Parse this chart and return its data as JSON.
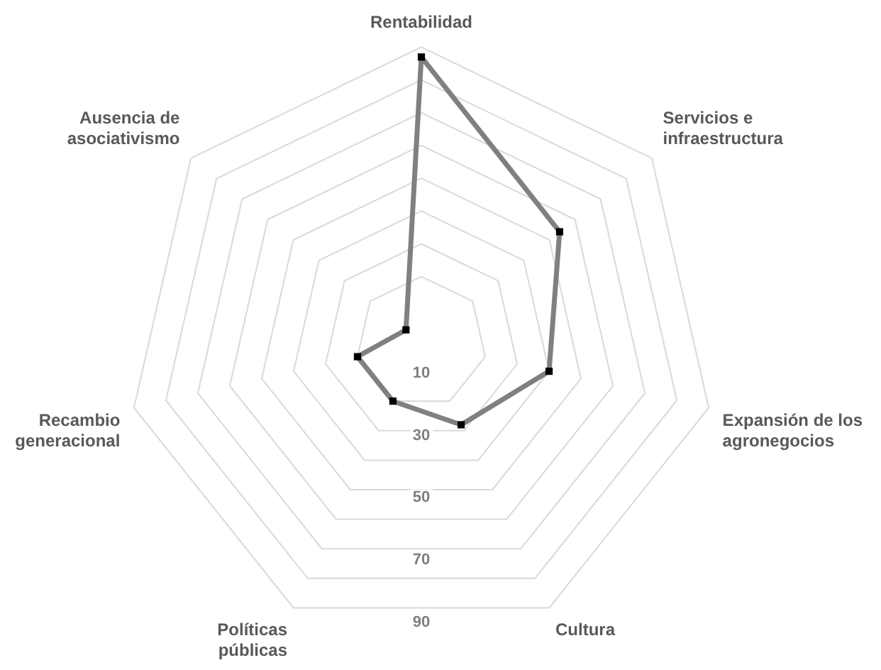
{
  "chart_data": {
    "type": "radar",
    "categories": [
      "Rentabilidad",
      "Servicios e infraestructura",
      "Expansión de los agronegocios",
      "Cultura",
      "Políticas públicas",
      "Recambio generacional",
      "Ausencia de asociativismo"
    ],
    "series": [
      {
        "color": "#808080",
        "values": [
          87,
          54,
          40,
          28,
          20,
          20,
          6
        ]
      }
    ],
    "ylim": [
      0,
      90
    ],
    "yticks": [
      10,
      30,
      50,
      70,
      90
    ],
    "grid": true,
    "legend": false,
    "marker": "square",
    "line_style": "solid"
  }
}
